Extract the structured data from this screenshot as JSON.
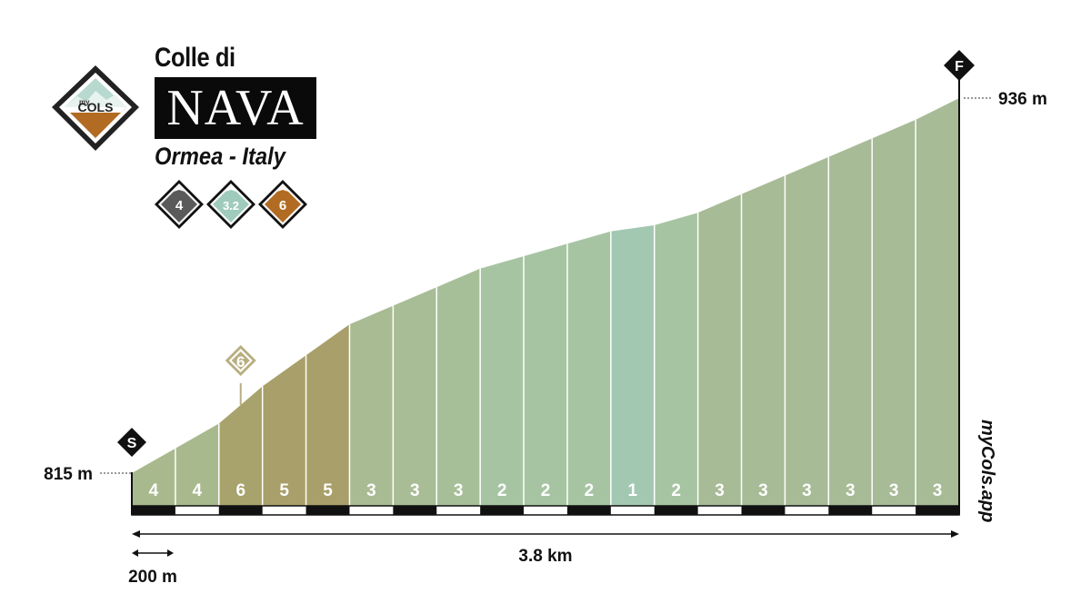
{
  "header": {
    "title_small": "Colle di",
    "title_big": "NAVA",
    "location": "Ormea - Italy",
    "logo": {
      "text_small": "my",
      "text_big": "COLS"
    },
    "ratings": [
      {
        "value": "4",
        "color": "#5a5a5a"
      },
      {
        "value": "3.2",
        "color": "#9fcbbd"
      },
      {
        "value": "6",
        "color": "#b26b22"
      }
    ]
  },
  "chart_data": {
    "type": "area",
    "x_total_label": "3.8 km",
    "segment_length_label": "200 m",
    "start_elevation_label": "815 m",
    "end_elevation_label": "936 m",
    "start_marker": "S",
    "finish_marker": "F",
    "max_gradient_marker": {
      "label": "6",
      "segment_index": 2
    },
    "watermark": "myCols.app",
    "distance_km": [
      0,
      0.2,
      0.4,
      0.6,
      0.8,
      1.0,
      1.2,
      1.4,
      1.6,
      1.8,
      2.0,
      2.2,
      2.4,
      2.6,
      2.8,
      3.0,
      3.2,
      3.4,
      3.6,
      3.8
    ],
    "elevation_m": [
      815,
      823,
      831,
      843,
      853,
      863,
      869,
      875,
      881,
      885,
      889,
      893,
      895,
      899,
      905,
      911,
      917,
      923,
      929,
      936
    ],
    "segment_gradients": [
      "4",
      "4",
      "6",
      "5",
      "5",
      "3",
      "3",
      "3",
      "2",
      "2",
      "2",
      "1",
      "2",
      "3",
      "3",
      "3",
      "3",
      "3",
      "3"
    ],
    "segment_colors": [
      "#a9b98e",
      "#a9b98e",
      "#a8a26c",
      "#a89f6a",
      "#a89f6a",
      "#a9bb93",
      "#a8bd96",
      "#a7bf98",
      "#a6c4a2",
      "#a6c4a2",
      "#a6c4a2",
      "#a2c8b2",
      "#a6c4a2",
      "#a7bb96",
      "#a7bb96",
      "#a7bb96",
      "#a7bb96",
      "#a7bb96",
      "#a7bb96"
    ]
  }
}
